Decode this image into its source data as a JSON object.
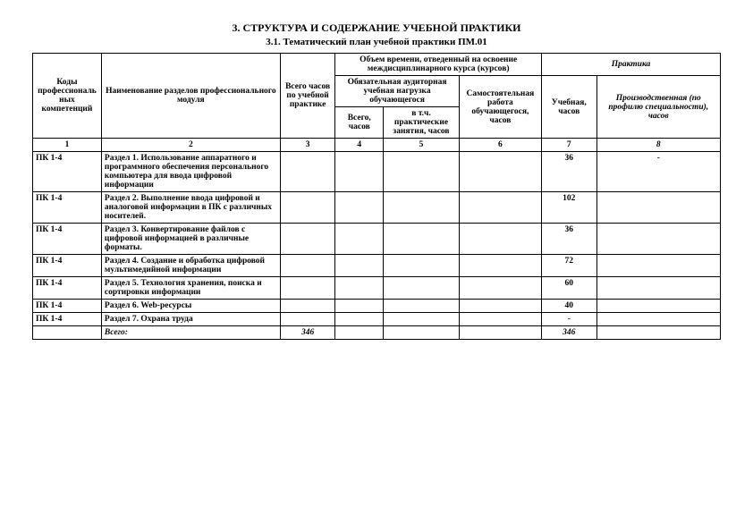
{
  "title": "3. СТРУКТУРА И СОДЕРЖАНИЕ УЧЕБНОЙ ПРАКТИКИ",
  "subtitle": "3.1. Тематический план учебной практики ПМ.01",
  "headers": {
    "codes": "Коды профессиональных компетенций",
    "names": "Наименование разделов профессионального модуля",
    "total": "Всего часов по учебной практике",
    "volume": "Объем времени, отведенный на освоение междисциплинарного курса (курсов)",
    "mandatory": "Обязательная аудиторная учебная нагрузка обучающегося",
    "self": "Самостоятельная работа обучающегося, часов",
    "practice": "Практика",
    "total_hours": "Всего, часов",
    "practical_incl": "в т.ч. практические занятия, часов",
    "edu": "Учебная, часов",
    "prod": "Производственная (по профилю специальности), часов"
  },
  "numrow": {
    "c1": "1",
    "c2": "2",
    "c3": "3",
    "c4": "4",
    "c5": "5",
    "c6": "6",
    "c7": "7",
    "c8": "8"
  },
  "rows": [
    {
      "code": "ПК 1-4",
      "name": "Раздел 1. Использование аппаратного и программного обеспечения персонального компьютера для ввода цифровой информации",
      "c3": "",
      "c4": "",
      "c5": "",
      "c6": "",
      "c7": "36",
      "c8": "-"
    },
    {
      "code": "ПК 1-4",
      "name": "Раздел 2. Выполнение ввода цифровой и аналоговой информации в ПК с различных носителей.",
      "c3": "",
      "c4": "",
      "c5": "",
      "c6": "",
      "c7": "102",
      "c8": ""
    },
    {
      "code": "ПК 1-4",
      "name": "Раздел 3. Конвертирование файлов с цифровой информацией в различные форматы.",
      "c3": "",
      "c4": "",
      "c5": "",
      "c6": "",
      "c7": "36",
      "c8": ""
    },
    {
      "code": "ПК 1-4",
      "name": "Раздел 4. Создание и обработка цифровой мультимедийной информации",
      "c3": "",
      "c4": "",
      "c5": "",
      "c6": "",
      "c7": "72",
      "c8": ""
    },
    {
      "code": "ПК 1-4",
      "name": "Раздел 5. Технология хранения, поиска и сортировки информации",
      "c3": "",
      "c4": "",
      "c5": "",
      "c6": "",
      "c7": "60",
      "c8": ""
    },
    {
      "code": "ПК 1-4",
      "name": "Раздел 6. Web-ресурсы",
      "c3": "",
      "c4": "",
      "c5": "",
      "c6": "",
      "c7": "40",
      "c8": ""
    },
    {
      "code": "ПК 1-4",
      "name": "Раздел 7. Охрана труда",
      "c3": "",
      "c4": "",
      "c5": "",
      "c6": "",
      "c7": "-",
      "c8": ""
    }
  ],
  "totals": {
    "label": "Всего:",
    "c3": "346",
    "c4": "",
    "c5": "",
    "c6": "",
    "c7": "346",
    "c8": ""
  }
}
